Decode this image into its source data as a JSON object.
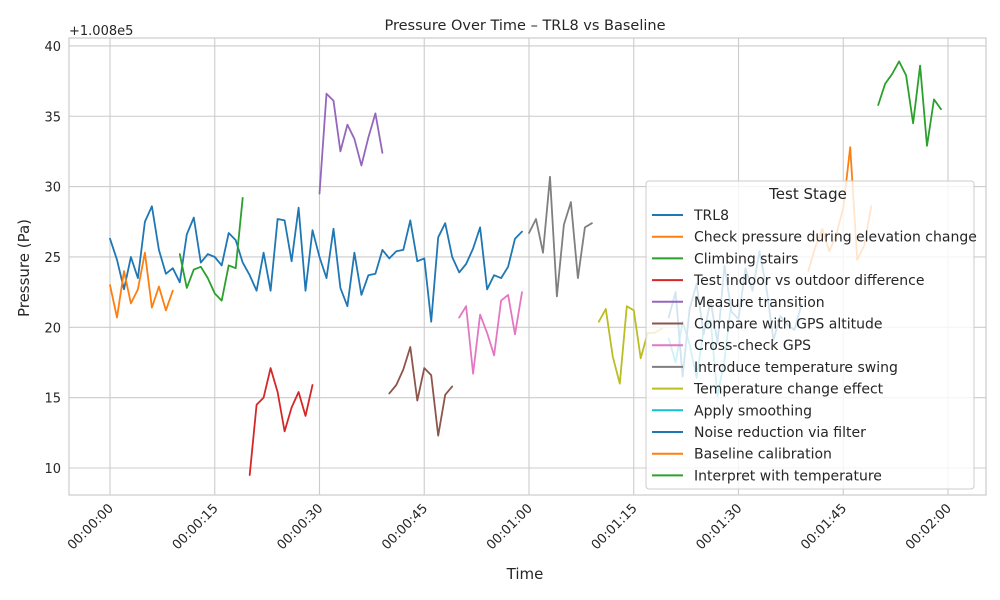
{
  "chart_data": {
    "type": "line",
    "title": "Pressure Over Time – TRL8 vs Baseline",
    "xlabel": "Time",
    "ylabel": "Pressure (Pa)",
    "y_offset_label": "+1.008e5",
    "y_offset": 100800,
    "xlim": [
      -5,
      124
    ],
    "ylim": [
      8,
      40.5
    ],
    "x_unit": "seconds from 00:00:00",
    "x_ticks": [
      {
        "value": 0,
        "label": "00:00:00"
      },
      {
        "value": 15,
        "label": "00:00:15"
      },
      {
        "value": 30,
        "label": "00:00:30"
      },
      {
        "value": 45,
        "label": "00:00:45"
      },
      {
        "value": 60,
        "label": "00:01:00"
      },
      {
        "value": 75,
        "label": "00:01:15"
      },
      {
        "value": 90,
        "label": "00:01:30"
      },
      {
        "value": 105,
        "label": "00:01:45"
      },
      {
        "value": 120,
        "label": "00:02:00"
      }
    ],
    "y_ticks": [
      {
        "value": 10,
        "label": "10"
      },
      {
        "value": 15,
        "label": "15"
      },
      {
        "value": 20,
        "label": "20"
      },
      {
        "value": 25,
        "label": "25"
      },
      {
        "value": 30,
        "label": "30"
      },
      {
        "value": 35,
        "label": "35"
      },
      {
        "value": 40,
        "label": "40"
      }
    ],
    "grid": true,
    "legend": {
      "title": "Test Stage",
      "placement": "center-right"
    },
    "series": [
      {
        "name": "TRL8",
        "color": "#1f77b4",
        "x": [
          0,
          1,
          2,
          3,
          4,
          5,
          6,
          7,
          8,
          9,
          10,
          11,
          12,
          13,
          14,
          15,
          16,
          17,
          18,
          19,
          20,
          21,
          22,
          23,
          24,
          25,
          26,
          27,
          28,
          29,
          30,
          31,
          32,
          33,
          34,
          35,
          36,
          37,
          38,
          39,
          40,
          41,
          42,
          43,
          44,
          45,
          46,
          47,
          48,
          49,
          50,
          51,
          52,
          53,
          54,
          55,
          56,
          57,
          58,
          59
        ],
        "y": [
          26.3,
          24.8,
          22.7,
          25.0,
          23.5,
          27.5,
          28.6,
          25.5,
          23.8,
          24.2,
          23.2,
          26.6,
          27.8,
          24.6,
          25.2,
          25.0,
          24.4,
          26.7,
          26.2,
          24.6,
          23.7,
          22.6,
          25.3,
          22.6,
          27.7,
          27.6,
          24.7,
          28.5,
          22.6,
          26.9,
          25.0,
          23.5,
          27.0,
          22.8,
          21.5,
          25.3,
          22.3,
          23.7,
          23.8,
          25.5,
          24.9,
          25.4,
          25.5,
          27.6,
          24.7,
          24.9,
          20.4,
          26.4,
          27.4,
          25.0,
          23.9,
          24.5,
          25.6,
          27.1,
          22.7,
          23.7,
          23.5,
          24.3,
          26.3,
          26.8
        ]
      },
      {
        "name": "Check pressure during elevation change",
        "color": "#ff7f0e",
        "x": [
          0,
          1,
          2,
          3,
          4,
          5,
          6,
          7,
          8,
          9
        ],
        "y": [
          23.0,
          20.7,
          24.0,
          21.7,
          22.7,
          25.3,
          21.4,
          22.9,
          21.2,
          22.6
        ]
      },
      {
        "name": "Climbing stairs",
        "color": "#2ca02c",
        "x": [
          10,
          11,
          12,
          13,
          14,
          15,
          16,
          17,
          18,
          19
        ],
        "y": [
          25.2,
          22.8,
          24.1,
          24.3,
          23.5,
          22.4,
          21.9,
          24.4,
          24.2,
          29.2
        ]
      },
      {
        "name": "Test indoor vs outdoor difference",
        "color": "#d62728",
        "x": [
          20,
          21,
          22,
          23,
          24,
          25,
          26,
          27,
          28,
          29
        ],
        "y": [
          9.5,
          14.5,
          15.0,
          17.1,
          15.4,
          12.6,
          14.3,
          15.4,
          13.7,
          15.9
        ]
      },
      {
        "name": "Measure transition",
        "color": "#9467bd",
        "x": [
          30,
          31,
          32,
          33,
          34,
          35,
          36,
          37,
          38,
          39
        ],
        "y": [
          29.5,
          36.6,
          36.1,
          32.5,
          34.4,
          33.4,
          31.5,
          33.5,
          35.2,
          32.4
        ]
      },
      {
        "name": "Compare with GPS altitude",
        "color": "#8c564b",
        "x": [
          40,
          41,
          42,
          43,
          44,
          45,
          46,
          47,
          48,
          49
        ],
        "y": [
          15.3,
          15.9,
          17.0,
          18.6,
          14.8,
          17.1,
          16.6,
          12.3,
          15.2,
          15.8
        ]
      },
      {
        "name": "Cross-check GPS",
        "color": "#e377c2",
        "x": [
          50,
          51,
          52,
          53,
          54,
          55,
          56,
          57,
          58,
          59
        ],
        "y": [
          20.7,
          21.5,
          16.7,
          20.9,
          19.6,
          18.0,
          21.9,
          22.3,
          19.5,
          22.5
        ]
      },
      {
        "name": "Introduce temperature swing",
        "color": "#7f7f7f",
        "x": [
          60,
          61,
          62,
          63,
          64,
          65,
          66,
          67,
          68,
          69
        ],
        "y": [
          26.7,
          27.7,
          25.3,
          30.7,
          22.2,
          27.3,
          28.9,
          23.5,
          27.1,
          27.4
        ]
      },
      {
        "name": "Temperature change effect",
        "color": "#bcbd22",
        "x": [
          70,
          71,
          72,
          73,
          74,
          75,
          76,
          77,
          78,
          79
        ],
        "y": [
          20.4,
          21.3,
          17.9,
          16.0,
          21.5,
          21.2,
          17.8,
          19.6,
          19.6,
          19.9
        ]
      },
      {
        "name": "Apply smoothing",
        "color": "#17becf",
        "x": [
          80,
          81,
          82,
          83,
          84,
          85,
          86,
          87,
          88,
          89
        ],
        "y": [
          19.2,
          17.5,
          20.4,
          18.8,
          16.4,
          19.8,
          20.5,
          15.1,
          17.7,
          21.9
        ]
      },
      {
        "name": "Noise reduction via filter",
        "color": "#1f77b4",
        "x": [
          80,
          81,
          82,
          83,
          84,
          85,
          86,
          87,
          88,
          89,
          90,
          91,
          92,
          93,
          94,
          95,
          96,
          97,
          98,
          99
        ],
        "y": [
          20.7,
          22.5,
          16.5,
          21.3,
          23.1,
          19.5,
          21.9,
          18.9,
          24.4,
          21.1,
          20.6,
          24.2,
          22.6,
          25.4,
          22.8,
          19.1,
          20.8,
          20.2,
          19.8,
          21.6
        ]
      },
      {
        "name": "Baseline calibration",
        "color": "#ff7f0e",
        "x": [
          100,
          101,
          102,
          103,
          104,
          105,
          106,
          107,
          108,
          109
        ],
        "y": [
          24.0,
          25.7,
          27.0,
          25.4,
          26.6,
          28.5,
          32.8,
          24.8,
          25.8,
          28.6
        ]
      },
      {
        "name": "Interpret with temperature",
        "color": "#2ca02c",
        "x": [
          110,
          111,
          112,
          113,
          114,
          115,
          116,
          117,
          118,
          119
        ],
        "y": [
          35.8,
          37.3,
          38.0,
          38.9,
          37.9,
          34.5,
          38.6,
          32.9,
          36.2,
          35.5
        ]
      }
    ]
  }
}
